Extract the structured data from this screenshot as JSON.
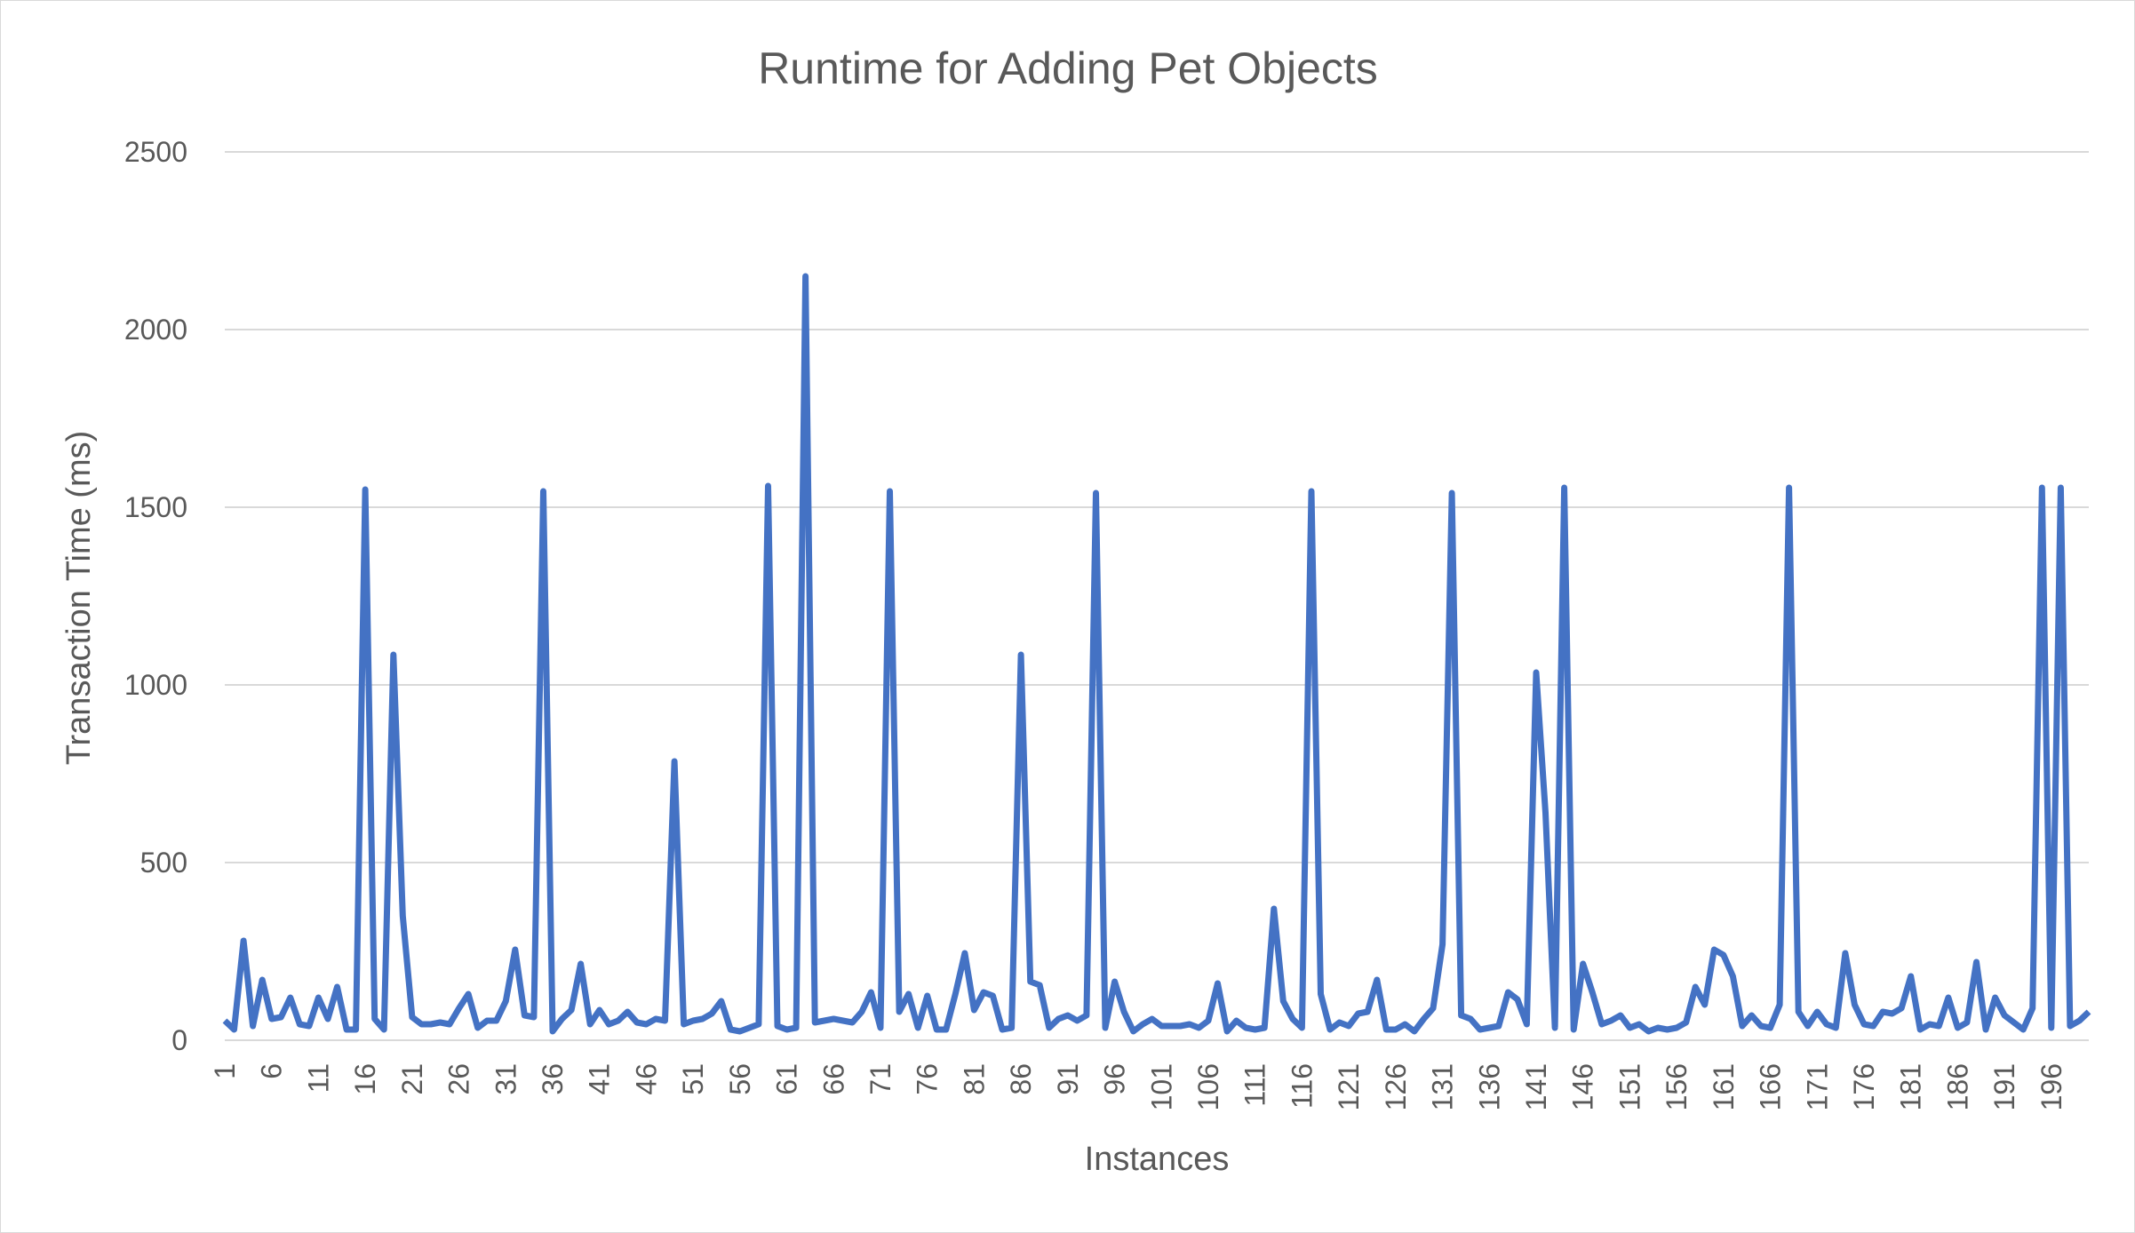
{
  "chart_data": {
    "type": "line",
    "title": "Runtime for Adding Pet Objects",
    "xlabel": "Instances",
    "ylabel": "Transaction Time (ms)",
    "ylim": [
      0,
      2500
    ],
    "yticks": [
      "0",
      "500",
      "1000",
      "1500",
      "2000",
      "2500"
    ],
    "xtick_labels": [
      "1",
      "6",
      "11",
      "16",
      "21",
      "26",
      "31",
      "36",
      "41",
      "46",
      "51",
      "56",
      "61",
      "66",
      "71",
      "76",
      "81",
      "86",
      "91",
      "96",
      "101",
      "106",
      "111",
      "116",
      "121",
      "126",
      "131",
      "136",
      "141",
      "146",
      "151",
      "156",
      "161",
      "166",
      "171",
      "176",
      "181",
      "186",
      "191",
      "196"
    ],
    "grid": true,
    "legend": "none",
    "line_color": "#4472C4",
    "x": [
      1,
      2,
      3,
      4,
      5,
      6,
      7,
      8,
      9,
      10,
      11,
      12,
      13,
      14,
      15,
      16,
      17,
      18,
      19,
      20,
      21,
      22,
      23,
      24,
      25,
      26,
      27,
      28,
      29,
      30,
      31,
      32,
      33,
      34,
      35,
      36,
      37,
      38,
      39,
      40,
      41,
      42,
      43,
      44,
      45,
      46,
      47,
      48,
      49,
      50,
      51,
      52,
      53,
      54,
      55,
      56,
      57,
      58,
      59,
      60,
      61,
      62,
      63,
      64,
      65,
      66,
      67,
      68,
      69,
      70,
      71,
      72,
      73,
      74,
      75,
      76,
      77,
      78,
      79,
      80,
      81,
      82,
      83,
      84,
      85,
      86,
      87,
      88,
      89,
      90,
      91,
      92,
      93,
      94,
      95,
      96,
      97,
      98,
      99,
      100,
      101,
      102,
      103,
      104,
      105,
      106,
      107,
      108,
      109,
      110,
      111,
      112,
      113,
      114,
      115,
      116,
      117,
      118,
      119,
      120,
      121,
      122,
      123,
      124,
      125,
      126,
      127,
      128,
      129,
      130,
      131,
      132,
      133,
      134,
      135,
      136,
      137,
      138,
      139,
      140,
      141,
      142,
      143,
      144,
      145,
      146,
      147,
      148,
      149,
      150,
      151,
      152,
      153,
      154,
      155,
      156,
      157,
      158,
      159,
      160,
      161,
      162,
      163,
      164,
      165,
      166,
      167,
      168,
      169,
      170,
      171,
      172,
      173,
      174,
      175,
      176,
      177,
      178,
      179,
      180,
      181,
      182,
      183,
      184,
      185,
      186,
      187,
      188,
      189,
      190,
      191,
      192,
      193,
      194,
      195,
      196,
      197,
      198,
      199,
      200
    ],
    "values": [
      55,
      30,
      280,
      40,
      170,
      60,
      65,
      120,
      45,
      40,
      120,
      60,
      150,
      30,
      30,
      1550,
      60,
      30,
      1085,
      350,
      65,
      45,
      45,
      50,
      45,
      90,
      130,
      35,
      55,
      55,
      110,
      255,
      70,
      65,
      1545,
      25,
      60,
      85,
      215,
      45,
      85,
      45,
      55,
      80,
      50,
      45,
      60,
      55,
      785,
      45,
      55,
      60,
      75,
      110,
      30,
      25,
      35,
      45,
      1560,
      40,
      30,
      35,
      2150,
      50,
      55,
      60,
      55,
      50,
      80,
      135,
      35,
      1545,
      80,
      130,
      35,
      125,
      30,
      30,
      130,
      245,
      85,
      135,
      125,
      30,
      35,
      1085,
      165,
      155,
      35,
      60,
      70,
      55,
      70,
      1540,
      35,
      165,
      80,
      25,
      45,
      60,
      40,
      40,
      40,
      45,
      35,
      55,
      160,
      25,
      55,
      35,
      30,
      35,
      370,
      110,
      60,
      35,
      1545,
      130,
      30,
      50,
      40,
      75,
      80,
      170,
      30,
      30,
      45,
      25,
      60,
      90,
      270,
      1540,
      70,
      60,
      30,
      35,
      40,
      135,
      115,
      45,
      1035,
      640,
      35,
      1555,
      30,
      215,
      135,
      45,
      55,
      70,
      35,
      45,
      25,
      35,
      30,
      35,
      50,
      150,
      100,
      255,
      240,
      180,
      40,
      70,
      40,
      35,
      100,
      1555,
      80,
      40,
      80,
      45,
      35,
      245,
      100,
      45,
      40,
      80,
      75,
      90,
      180,
      30,
      45,
      40,
      120,
      35,
      50,
      220,
      30,
      120,
      70,
      50,
      30,
      90,
      1555,
      35,
      1555,
      40,
      55,
      80
    ]
  }
}
